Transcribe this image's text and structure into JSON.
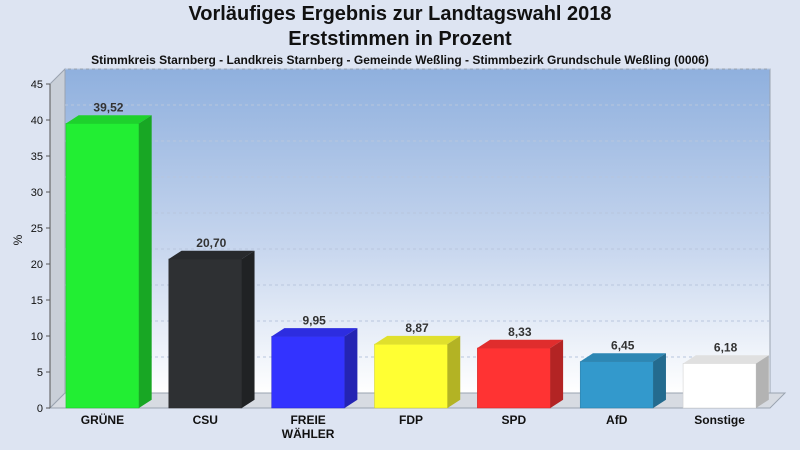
{
  "chart_data": {
    "type": "bar",
    "title": "Vorläufiges Ergebnis zur Landtagswahl 2018",
    "subtitle": "Erststimmen in Prozent",
    "caption": "Stimmkreis Starnberg - Landkreis Starnberg - Gemeinde Weßling - Stimmbezirk Grundschule Weßling (0006)",
    "ylabel": "%",
    "xlabel": "",
    "ylim": [
      0,
      45
    ],
    "yticks": [
      0,
      5,
      10,
      15,
      20,
      25,
      30,
      35,
      40,
      45
    ],
    "grid": true,
    "categories": [
      [
        "GRÜNE"
      ],
      [
        "CSU"
      ],
      [
        "FREIE",
        "WÄHLER"
      ],
      [
        "FDP"
      ],
      [
        "SPD"
      ],
      [
        "AfD"
      ],
      [
        "Sonstige"
      ]
    ],
    "values": [
      39.52,
      20.7,
      9.95,
      8.87,
      8.33,
      6.45,
      6.18
    ],
    "value_labels": [
      "39,52",
      "20,70",
      "9,95",
      "8,87",
      "8,33",
      "6,45",
      "6,18"
    ],
    "colors": [
      "#22ee33",
      "#2e3033",
      "#3333ff",
      "#ffff33",
      "#ff3333",
      "#3399cc",
      "#ffffff"
    ]
  }
}
